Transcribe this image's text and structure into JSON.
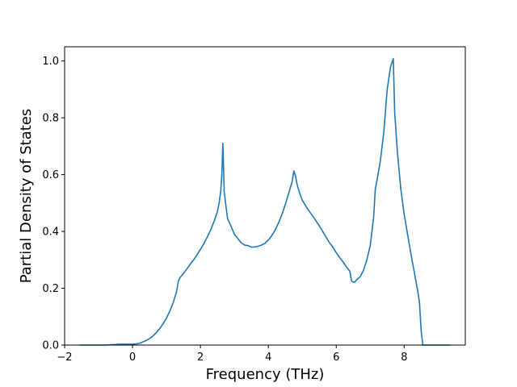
{
  "chart_data": {
    "type": "line",
    "title": "",
    "xlabel": "Frequency (THz)",
    "ylabel": "Partial Density of States",
    "xlim": [
      -2.0,
      9.8
    ],
    "ylim": [
      0.0,
      1.05
    ],
    "xticks": [
      -2,
      0,
      2,
      4,
      6,
      8
    ],
    "xtick_labels": [
      "−2",
      "0",
      "2",
      "4",
      "6",
      "8"
    ],
    "yticks": [
      0.0,
      0.2,
      0.4,
      0.6,
      0.8,
      1.0
    ],
    "ytick_labels": [
      "0.0",
      "0.2",
      "0.4",
      "0.6",
      "0.8",
      "1.0"
    ],
    "grid": false,
    "legend": false,
    "line_color": "#1f77b4",
    "series": [
      {
        "x": [
          -1.55,
          -1.2,
          -0.8,
          -0.5,
          -0.4,
          -0.2,
          0.0,
          0.1,
          0.2,
          0.3,
          0.4,
          0.5,
          0.6,
          0.7,
          0.8,
          0.9,
          1.0,
          1.1,
          1.2,
          1.3,
          1.35,
          1.4,
          1.5,
          1.6,
          1.7,
          1.8,
          1.9,
          2.0,
          2.1,
          2.2,
          2.3,
          2.4,
          2.5,
          2.55,
          2.6,
          2.63,
          2.66,
          2.7,
          2.75,
          2.8,
          2.9,
          3.0,
          3.1,
          3.2,
          3.3,
          3.4,
          3.5,
          3.6,
          3.7,
          3.8,
          3.9,
          4.0,
          4.1,
          4.2,
          4.3,
          4.4,
          4.5,
          4.6,
          4.7,
          4.75,
          4.8,
          4.83,
          4.87,
          4.95,
          5.0,
          5.1,
          5.2,
          5.3,
          5.4,
          5.5,
          5.6,
          5.7,
          5.8,
          5.9,
          6.0,
          6.1,
          6.2,
          6.3,
          6.4,
          6.45,
          6.5,
          6.55,
          6.6,
          6.7,
          6.8,
          6.9,
          7.0,
          7.1,
          7.15,
          7.2,
          7.3,
          7.4,
          7.5,
          7.55,
          7.6,
          7.68,
          7.72,
          7.8,
          7.9,
          8.0,
          8.1,
          8.2,
          8.3,
          8.4,
          8.45,
          8.5,
          8.55,
          8.8,
          9.1,
          9.35
        ],
        "y": [
          0.0,
          0.0,
          0.0,
          0.002,
          0.003,
          0.003,
          0.003,
          0.004,
          0.006,
          0.011,
          0.016,
          0.023,
          0.032,
          0.044,
          0.058,
          0.075,
          0.095,
          0.12,
          0.15,
          0.19,
          0.225,
          0.238,
          0.252,
          0.268,
          0.285,
          0.3,
          0.318,
          0.337,
          0.357,
          0.38,
          0.405,
          0.435,
          0.47,
          0.5,
          0.545,
          0.6,
          0.71,
          0.54,
          0.49,
          0.445,
          0.418,
          0.39,
          0.375,
          0.36,
          0.352,
          0.35,
          0.345,
          0.345,
          0.348,
          0.352,
          0.358,
          0.37,
          0.385,
          0.405,
          0.43,
          0.46,
          0.495,
          0.535,
          0.575,
          0.613,
          0.595,
          0.575,
          0.555,
          0.525,
          0.51,
          0.49,
          0.472,
          0.455,
          0.438,
          0.42,
          0.4,
          0.38,
          0.36,
          0.345,
          0.325,
          0.308,
          0.293,
          0.275,
          0.26,
          0.225,
          0.222,
          0.222,
          0.23,
          0.24,
          0.262,
          0.3,
          0.35,
          0.45,
          0.55,
          0.58,
          0.65,
          0.75,
          0.9,
          0.94,
          0.98,
          1.008,
          0.82,
          0.68,
          0.55,
          0.46,
          0.39,
          0.32,
          0.255,
          0.19,
          0.15,
          0.05,
          0.0,
          0.0,
          0.0,
          0.0
        ]
      }
    ]
  }
}
